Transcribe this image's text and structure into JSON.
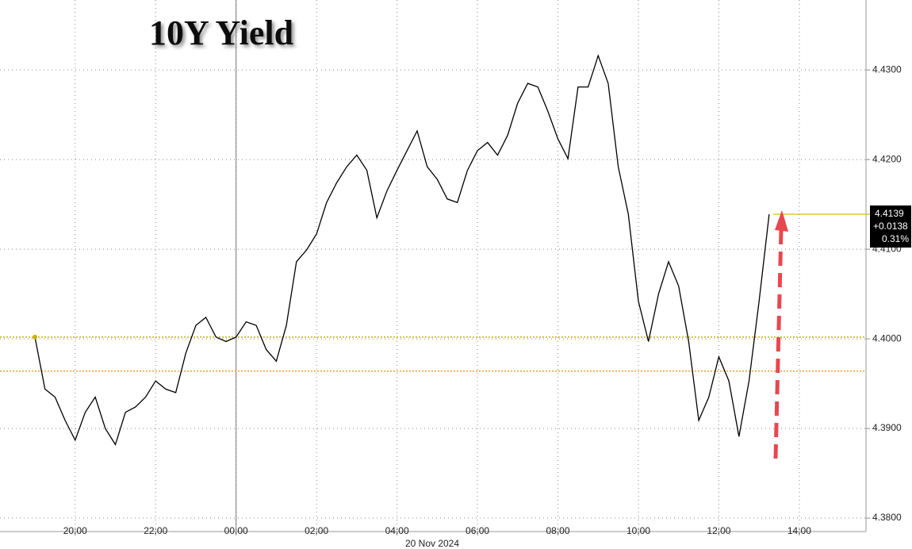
{
  "chart_data": {
    "type": "line",
    "title": "10Y Yield",
    "date_label": "20 Nov 2024",
    "x": [
      "18:15",
      "18:30",
      "18:45",
      "19:00",
      "19:15",
      "19:30",
      "19:45",
      "20:00",
      "20:15",
      "20:30",
      "20:45",
      "21:00",
      "21:15",
      "21:30",
      "21:45",
      "22:00",
      "22:15",
      "22:30",
      "22:45",
      "23:00",
      "23:15",
      "23:30",
      "23:45",
      "00:00",
      "00:15",
      "00:30",
      "00:45",
      "01:00",
      "01:15",
      "01:30",
      "01:45",
      "02:00",
      "02:15",
      "02:30",
      "02:45",
      "03:00",
      "03:15",
      "03:30",
      "03:45",
      "04:00",
      "04:15",
      "04:30",
      "04:45",
      "05:00",
      "05:15",
      "05:30",
      "05:45",
      "06:00",
      "06:15",
      "06:30",
      "06:45",
      "07:00",
      "07:15",
      "07:30",
      "07:45",
      "08:00",
      "08:15",
      "08:30",
      "08:45",
      "09:00",
      "09:15",
      "09:30",
      "09:45",
      "10:00",
      "10:15",
      "10:30",
      "10:45",
      "11:00",
      "11:15",
      "11:30",
      "11:45",
      "12:00",
      "12:15",
      "12:30",
      "12:45",
      "13:00",
      "13:15",
      "13:30",
      "13:45",
      "14:00",
      "14:15",
      "14:30",
      "14:45",
      "15:00",
      "15:15",
      "15:30"
    ],
    "series": [
      {
        "name": "10Y Yield",
        "color": "#000000",
        "values": [
          null,
          null,
          null,
          4.4002,
          4.3944,
          4.3935,
          4.3909,
          4.3887,
          4.3918,
          4.3935,
          4.39,
          4.3882,
          4.3918,
          4.3924,
          4.3935,
          4.3953,
          4.3944,
          4.394,
          4.3984,
          4.4015,
          4.4024,
          4.4002,
          4.3997,
          4.4002,
          4.4019,
          4.4015,
          4.3988,
          4.3975,
          4.4015,
          4.4086,
          4.4099,
          4.4117,
          4.4152,
          4.4174,
          4.4192,
          4.4205,
          4.4188,
          4.4135,
          4.4165,
          4.4188,
          4.421,
          4.4232,
          4.4192,
          4.4178,
          4.4156,
          4.4152,
          4.4188,
          4.421,
          4.4219,
          4.4205,
          4.4227,
          4.4263,
          4.4285,
          4.4281,
          4.4254,
          4.4223,
          4.4201,
          4.4281,
          4.4281,
          4.4316,
          4.4285,
          4.4192,
          4.4139,
          4.4042,
          4.3997,
          4.405,
          4.4086,
          4.4059,
          4.3997,
          4.3909,
          4.3935,
          4.398,
          4.3953,
          4.3891,
          4.3953,
          4.4042,
          4.4139,
          null,
          null,
          null,
          null,
          null,
          null,
          null,
          null,
          null
        ]
      }
    ],
    "xticks": [
      "20:00",
      "22:00",
      "00:00",
      "02:00",
      "04:00",
      "06:00",
      "08:00",
      "10:00",
      "12:00",
      "14:00"
    ],
    "day_break": "00:00",
    "ylim": [
      4.3785,
      4.4378
    ],
    "yticks": [
      {
        "value": 4.38,
        "label": "4.3800"
      },
      {
        "value": 4.39,
        "label": "4.3900"
      },
      {
        "value": 4.4,
        "label": "4.4000"
      },
      {
        "value": 4.41,
        "label": "4.4100"
      },
      {
        "value": 4.42,
        "label": "4.4200"
      },
      {
        "value": 4.43,
        "label": "4.4300"
      }
    ],
    "grid": true,
    "ref_lines": [
      {
        "value": 4.4002,
        "color": "#c8b400"
      },
      {
        "value": 4.3964,
        "color": "#f0a030"
      }
    ],
    "last_value": 4.4139,
    "change": "+0.0138",
    "change_pct": "0.31%",
    "last_color": "#d6c200"
  }
}
